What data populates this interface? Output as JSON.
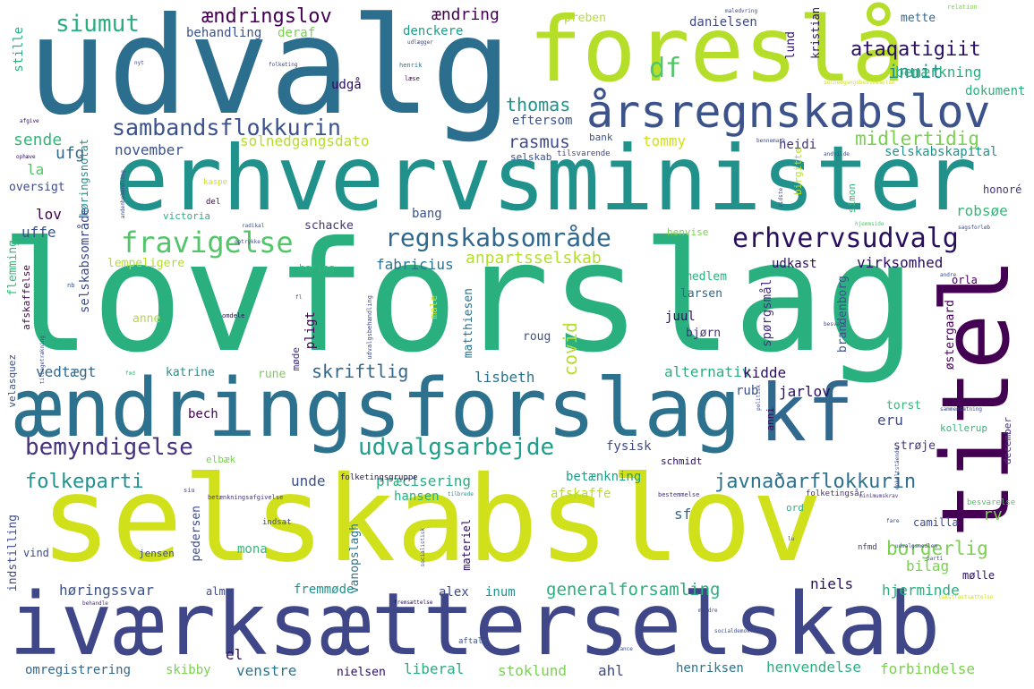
{
  "words": {
    "udvalg": "udvalg",
    "foresla": "foreslå",
    "erhvervsminister": "erhvervsminister",
    "lovforslag": "lovforslag",
    "aendringsforslag": "ændringsforslag",
    "selskabslov": "selskabslov",
    "ivaerksaetterselskab": "iværksætterselskab",
    "kf": "kf",
    "titel": "titel",
    "aarsregnskabslov": "årsregnskabslov",
    "regnskabsomrade": "regnskabsområde",
    "erhvervsudvalg": "erhvervsudvalg",
    "fravigelse": "fravigelse",
    "sambandsflokkurin": "sambandsflokkurin",
    "bemyndigelse": "bemyndigelse",
    "udvalgsarbejde": "udvalgsarbejde",
    "siumut": "siumut",
    "aendringslov": "ændringslov",
    "ataqatigiit": "ataqatigiit",
    "df": "df",
    "midlertidig": "midlertidig",
    "javnadarflokkurin": "javnaðarflokkurin",
    "folkeparti": "folkeparti",
    "inuit": "inuit",
    "anpartsselskab": "anpartsselskab",
    "thomas": "thomas",
    "borgerlig": "borgerlig",
    "generalforsamling": "generalforsamling",
    "skriftlig": "skriftlig",
    "rasmus": "rasmus",
    "solnedgangsdato": "solnedgangsdato",
    "covid": "covid",
    "aendring": "ændring",
    "behandling": "behandling",
    "denckere": "denckere",
    "deraf": "deraf",
    "preben": "preben",
    "danielsen": "danielsen",
    "lund": "lund",
    "kristian": "kristian",
    "mette": "mette",
    "bemaerkning": "bemærkning",
    "dokument": "dokument",
    "udga": "udgå",
    "eftersom": "eftersom",
    "stille": "stille",
    "sende": "sende",
    "ufg": "ufg",
    "la": "la",
    "november": "november",
    "tommy": "tommy",
    "heidi": "heidi",
    "selskabskapital": "selskabskapital",
    "bank": "bank",
    "selskab": "selskab",
    "tilsvarende": "tilsvarende",
    "oversigt": "oversigt",
    "hoeringsnotat": "høringsnotat",
    "birgitte": "birgitte",
    "honore": "honoré",
    "simon": "simon",
    "lov": "lov",
    "selskabsomrade": "selskabsområde",
    "bang": "bang",
    "robsoe": "robsøe",
    "victoria": "victoria",
    "schacke": "schacke",
    "henvise": "henvise",
    "uffe": "uffe",
    "fabricius": "fabricius",
    "udkast": "udkast",
    "virksomhed": "virksomhed",
    "lempeligere": "lempeligere",
    "hoering": "høring",
    "medlem": "medlem",
    "orla": "orla",
    "flemming": "flemming",
    "larsen": "larsen",
    "afskaffelse": "afskaffelse",
    "matthiesen": "matthiesen",
    "anne": "anne",
    "juul": "juul",
    "pligt": "pligt",
    "moede": "møde",
    "bjoern": "bjørn",
    "roug": "roug",
    "spoergsmal": "spørgsmål",
    "brandenborg": "brandenborg",
    "oestergaard": "østergaard",
    "vedtaegt": "vedtægt",
    "alternativ": "alternativ",
    "kidde": "kidde",
    "katrine": "katrine",
    "rune": "rune",
    "lisbeth": "lisbeth",
    "rub": "rub",
    "jarlov": "jarlov",
    "torst": "torst",
    "velasquez": "velasquez",
    "bech": "bech",
    "eru": "eru",
    "kollerup": "kollerup",
    "anni": "anni",
    "elbaek": "elbæk",
    "fysisk": "fysisk",
    "stroeje": "strøje",
    "schmidt": "schmidt",
    "december": "december",
    "unde": "unde",
    "praecisering": "præcisering",
    "betaenkning": "betænkning",
    "hansen": "hansen",
    "afskaffe": "afskaffe",
    "sf": "sf",
    "rv": "rv",
    "camilla": "camilla",
    "pedersen": "pedersen",
    "indstilling": "indstilling",
    "vanopslagh": "vanopslagh",
    "materiel": "materiel",
    "ord": "ord",
    "mona": "mona",
    "bilag": "bilag",
    "moelle": "mølle",
    "vind": "vind",
    "jensen": "jensen",
    "hoeringssvar": "høringssvar",
    "fremmoede": "fremmøde",
    "alex": "alex",
    "inum": "inum",
    "niels": "niels",
    "hjerminde": "hjerminde",
    "alme": "alme",
    "el": "el",
    "omregistrering": "omregistrering",
    "skibby": "skibby",
    "venstre": "venstre",
    "nielsen": "nielsen",
    "liberal": "liberal",
    "stoklund": "stoklund",
    "ahl": "ahl",
    "henriksen": "henriksen",
    "henvendelse": "henvendelse",
    "forbindelse": "forbindelse",
    "besvarelse": "besvarelse",
    "nfmd": "nfmd",
    "aftale": "aftale",
    "udlaegger": "udlægger",
    "henrik": "henrik",
    "laese": "læse",
    "relation": "relation",
    "afgive": "afgive",
    "ophaeve": "ophæve",
    "kaspe": "kaspe",
    "del": "del",
    "radikal": "radikal",
    "optrykke": "optrykke",
    "nb": "nb",
    "omdele": "omdele",
    "fmd": "fmd",
    "folketingsgruppe": "folketingsgruppe",
    "betaenkningsafgivelse": "betænkningsafgivelse",
    "tilbrede": "tilbrede",
    "bestemmelse": "bestemmelse",
    "folketingsar": "folketingsår",
    "minimumskrav": "minimumskrav",
    "siu": "siu",
    "indsat": "indsat",
    "behandle": "behandle",
    "alliance": "alliance",
    "andenbehandling": "andenbehandling",
    "solnedgangsbestemmelse": "solnedgangsbestemmelse",
    "enkeltstaende": "enkeltstående",
    "besvare": "besvare",
    "fremsaettelse": "fremsættelse",
    "andre": "andre",
    "udvalgsbehandling": "udvalgsbehandling",
    "mindre": "mindre",
    "andvilde": "andvilde",
    "bennemark": "bennemark",
    "sagsforlob": "sagsforløb",
    "hjemmside": "hjemmside",
    "sammensaetning": "sammensætning",
    "sidste": "sidste",
    "socialistisk": "socialistisk",
    "parti": "parti",
    "lu": "lu",
    "fare": "fare",
    "takstfastsaettelse": "takstfastsættelse",
    "nyt": "nyt",
    "maledvring": "maledvring",
    "socialdemokrati": "socialdemokrati",
    "andentbehandling": "andenbehandling",
    "folketing": "folketing",
    "male": "male",
    "fl": "fl",
    "tilbagetraekning": "tilbagetrækning",
    "politisk": "politisk",
    "udvalgsmedlem": "udvalgsmedlem"
  }
}
